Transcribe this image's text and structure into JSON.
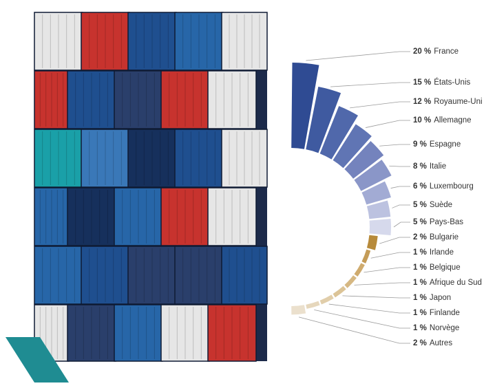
{
  "chart_data": {
    "type": "radial-bar",
    "categories": [
      "France",
      "États-Unis",
      "Royaume-Uni",
      "Allemagne",
      "Espagne",
      "Italie",
      "Luxembourg",
      "Suède",
      "Pays-Bas",
      "Bulgarie",
      "Irlande",
      "Belgique",
      "Afrique du Sud",
      "Japon",
      "Finlande",
      "Norvège",
      "Autres"
    ],
    "values": [
      20,
      15,
      12,
      10,
      9,
      8,
      6,
      5,
      5,
      2,
      1,
      1,
      1,
      1,
      1,
      1,
      2
    ],
    "value_labels": [
      "20 %",
      "15 %",
      "12 %",
      "10 %",
      "9 %",
      "8 %",
      "6 %",
      "5 %",
      "5 %",
      "2 %",
      "1 %",
      "1 %",
      "1 %",
      "1 %",
      "1 %",
      "1 %",
      "2 %"
    ],
    "colors": [
      "#2f4b93",
      "#3f5aa0",
      "#5068ab",
      "#6075b4",
      "#7483bd",
      "#8a96c8",
      "#a2abd4",
      "#bcc2e0",
      "#d6d9ec",
      "#b78a3a",
      "#c49c58",
      "#cfab6e",
      "#d6b883",
      "#dcc497",
      "#e1ceaa",
      "#e6d7bc",
      "#ebe0cd"
    ]
  }
}
